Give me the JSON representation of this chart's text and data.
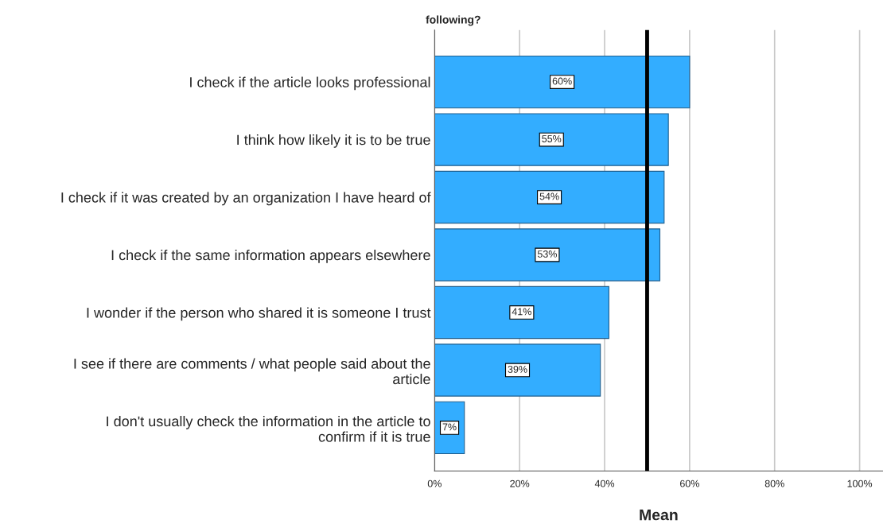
{
  "chart_data": {
    "type": "bar",
    "orientation": "horizontal",
    "title": "following?",
    "xlabel": "Mean",
    "categories": [
      "I check if the article looks professional",
      "I think how likely it is to be true",
      "I check if it was created by an organization I have heard of",
      "I check if the same information appears elsewhere",
      "I wonder if the person who shared it is someone I trust",
      "I see if there are comments / what people said about the\narticle",
      "I don't usually check the information in the article to\nconfirm if it is true"
    ],
    "values": [
      60,
      55,
      54,
      53,
      41,
      39,
      7
    ],
    "color": "#33adff",
    "value_labels": [
      "60%",
      "55%",
      "54%",
      "53%",
      "41%",
      "39%",
      "7%"
    ],
    "xlim": [
      0,
      105.4
    ],
    "xticks": [
      {
        "value": 0,
        "label": "0%"
      },
      {
        "value": 20,
        "label": "20%"
      },
      {
        "value": 40,
        "label": "40%"
      },
      {
        "value": 60,
        "label": "60%"
      },
      {
        "value": 80,
        "label": "80%"
      },
      {
        "value": 100,
        "label": "100%"
      }
    ],
    "ref_lines": [
      {
        "axis": "x",
        "value": 50,
        "color": "#000000"
      }
    ],
    "grid": "x",
    "legend": false
  }
}
